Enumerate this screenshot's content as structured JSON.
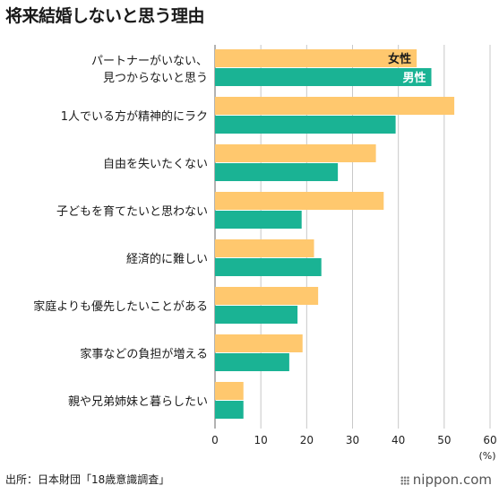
{
  "chart_data": {
    "type": "bar",
    "orientation": "horizontal",
    "title": "将来結婚しないと思う理由",
    "categories": [
      [
        "パートナーがいない、",
        "見つからないと思う"
      ],
      [
        "1人でいる方が精神的にラク"
      ],
      [
        "自由を失いたくない"
      ],
      [
        "子どもを育てたいと思わない"
      ],
      [
        "経済的に難しい"
      ],
      [
        "家庭よりも優先したいことがある"
      ],
      [
        "家事などの負担が増える"
      ],
      [
        "親や兄弟姉妹と暮らしたい"
      ]
    ],
    "series": [
      {
        "name": "女性",
        "color": "#FFC86E",
        "values": [
          44.0,
          52.2,
          35.1,
          36.8,
          21.6,
          22.5,
          19.1,
          6.2
        ]
      },
      {
        "name": "男性",
        "color": "#1AB394",
        "values": [
          47.2,
          39.4,
          26.8,
          18.9,
          23.2,
          18.0,
          16.2,
          6.2
        ]
      }
    ],
    "xlim": [
      0,
      60
    ],
    "xticks": [
      "0",
      "10",
      "20",
      "30",
      "40",
      "50",
      "60"
    ],
    "unit": "(%)",
    "legend": "inside-bars-top"
  },
  "source": "出所：日本財団「18歳意識調査」",
  "brand": "nippon.com"
}
